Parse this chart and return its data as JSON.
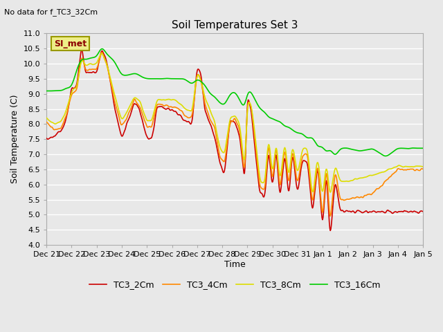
{
  "title": "Soil Temperatures Set 3",
  "xlabel": "Time",
  "ylabel": "Soil Temperature (C)",
  "top_left_text": "No data for f_TC3_32Cm",
  "legend_label_text": "SI_met",
  "ylim": [
    4.0,
    11.0
  ],
  "yticks": [
    4.0,
    4.5,
    5.0,
    5.5,
    6.0,
    6.5,
    7.0,
    7.5,
    8.0,
    8.5,
    9.0,
    9.5,
    10.0,
    10.5,
    11.0
  ],
  "colors": {
    "TC3_2Cm": "#cc0000",
    "TC3_4Cm": "#ff8800",
    "TC3_8Cm": "#dddd00",
    "TC3_16Cm": "#00cc00"
  },
  "background_color": "#e8e8e8",
  "plot_bg_color": "#e8e8e8",
  "grid_color": "#ffffff",
  "xtick_labels": [
    "Dec 21",
    "Dec 22",
    "Dec 23",
    "Dec 24",
    "Dec 25",
    "Dec 26",
    "Dec 27",
    "Dec 28",
    "Dec 29",
    "Dec 30",
    "Dec 31",
    "Jan 1",
    "Jan 2",
    "Jan 3",
    "Jan 4",
    "Jan 5"
  ],
  "legend_entries": [
    "TC3_2Cm",
    "TC3_4Cm",
    "TC3_8Cm",
    "TC3_16Cm"
  ],
  "figsize": [
    6.4,
    4.8
  ],
  "dpi": 100
}
